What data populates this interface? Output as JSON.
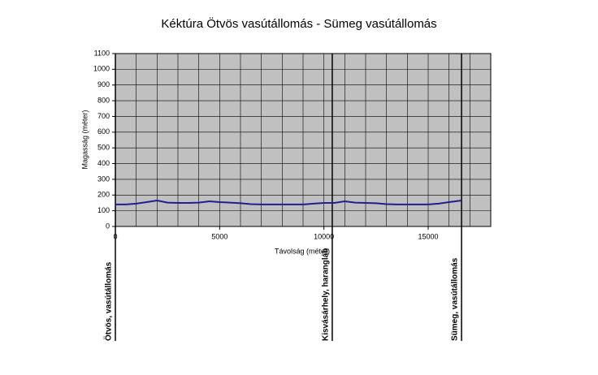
{
  "chart_data": {
    "type": "line",
    "title": "Kéktúra Ötvös vasútállomás - Sümeg vasútállomás",
    "x_label": "Távolság (méter)",
    "y_label": "Magasság (méter)",
    "x": [
      0,
      500,
      1000,
      1500,
      2000,
      2500,
      3000,
      3500,
      4000,
      4500,
      5000,
      5500,
      6000,
      6500,
      7000,
      7500,
      8000,
      8500,
      9000,
      9500,
      10000,
      10500,
      11000,
      11500,
      12000,
      12500,
      13000,
      13500,
      14000,
      14500,
      15000,
      15500,
      16000,
      16600
    ],
    "series": [
      {
        "name": "Magasság",
        "color": "#1f1f8f",
        "values": [
          140,
          140,
          145,
          155,
          165,
          152,
          150,
          150,
          152,
          160,
          155,
          152,
          148,
          142,
          140,
          140,
          140,
          140,
          140,
          145,
          150,
          150,
          160,
          152,
          150,
          148,
          142,
          140,
          140,
          140,
          140,
          145,
          155,
          165
        ]
      }
    ],
    "xlim": [
      0,
      18000
    ],
    "ylim": [
      0,
      1100
    ],
    "xticks": [
      0,
      5000,
      10000,
      15000
    ],
    "yticks": [
      0,
      100,
      200,
      300,
      400,
      500,
      600,
      700,
      800,
      900,
      1000,
      1100
    ],
    "xgrid_step": 1000,
    "grid": true,
    "plot_color": "#c0c0c0",
    "annotations": [
      {
        "x": 0,
        "label": "Ötvös, vasútállomás"
      },
      {
        "x": 10400,
        "label": "Kisvásárhely, harangláb"
      },
      {
        "x": 16600,
        "label": "Sümeg, vasútállomás"
      }
    ]
  }
}
